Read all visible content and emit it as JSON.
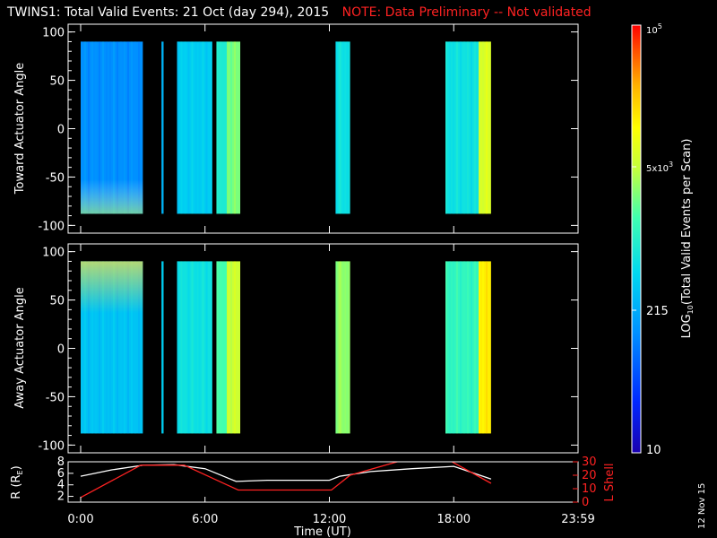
{
  "title": {
    "main": "TWINS1: Total Valid Events: 21 Oct (day 294), 2015",
    "note": "NOTE: Data Preliminary -- Not validated"
  },
  "colors": {
    "background": "#000000",
    "axes": "#ffffff",
    "note": "#ff2222",
    "r_line": "#ffffff",
    "lshell_line": "#ff2222"
  },
  "chart_data": [
    {
      "type": "heatmap",
      "name": "toward",
      "ylabel": "Toward Actuator Angle",
      "xlabel": "",
      "xlim": [
        0,
        24
      ],
      "ylim": [
        -108,
        108
      ],
      "yticks": [
        100,
        50,
        0,
        -50,
        -100
      ],
      "angle_range": [
        -88,
        90
      ],
      "blocks": [
        {
          "start": 0.0,
          "end": 3.0,
          "level": 0.28
        },
        {
          "start": 3.9,
          "end": 4.0,
          "level": 0.35
        },
        {
          "start": 4.65,
          "end": 6.35,
          "level": 0.4
        },
        {
          "start": 6.55,
          "end": 7.05,
          "level": 0.48
        },
        {
          "start": 7.05,
          "end": 7.7,
          "level": 0.6
        },
        {
          "start": 12.3,
          "end": 13.0,
          "level": 0.45
        },
        {
          "start": 17.6,
          "end": 19.2,
          "level": 0.45
        },
        {
          "start": 19.2,
          "end": 19.8,
          "level": 0.7
        }
      ]
    },
    {
      "type": "heatmap",
      "name": "away",
      "ylabel": "Away Actuator Angle",
      "xlabel": "",
      "xlim": [
        0,
        24
      ],
      "ylim": [
        -108,
        108
      ],
      "yticks": [
        100,
        50,
        0,
        -50,
        -100
      ],
      "angle_range": [
        -88,
        90
      ],
      "blocks": [
        {
          "start": 0.0,
          "end": 3.0,
          "level": 0.38
        },
        {
          "start": 3.9,
          "end": 4.0,
          "level": 0.4
        },
        {
          "start": 4.65,
          "end": 6.35,
          "level": 0.45
        },
        {
          "start": 6.55,
          "end": 7.05,
          "level": 0.55
        },
        {
          "start": 7.05,
          "end": 7.7,
          "level": 0.68
        },
        {
          "start": 12.3,
          "end": 13.0,
          "level": 0.62
        },
        {
          "start": 17.6,
          "end": 19.2,
          "level": 0.52
        },
        {
          "start": 19.2,
          "end": 19.8,
          "level": 0.78
        }
      ]
    },
    {
      "type": "line",
      "name": "orbit",
      "xlabel": "Time (UT)",
      "ylabel": "R (R",
      "ylabel_sub": "E",
      "ylabel_close": ")",
      "ylabel_right": "L Shell",
      "xlim": [
        0,
        24
      ],
      "xticks": [
        "0:00",
        "6:00",
        "12:00",
        "18:00",
        "23:59"
      ],
      "xtick_values": [
        0,
        6,
        12,
        18,
        24
      ],
      "ylim_left": [
        1,
        8
      ],
      "yticks_left": [
        2,
        4,
        6,
        8
      ],
      "ylim_right": [
        0,
        30
      ],
      "yticks_right": [
        0,
        10,
        20,
        30
      ],
      "series": [
        {
          "axis": "left",
          "color": "#ffffff",
          "x": [
            0,
            1.5,
            3,
            4.5,
            6,
            7.5,
            9,
            12,
            12.5,
            14,
            16,
            18,
            19.8
          ],
          "y": [
            5.5,
            6.6,
            7.4,
            7.5,
            6.8,
            4.6,
            4.8,
            4.8,
            5.5,
            6.3,
            6.8,
            7.2,
            5.0
          ]
        },
        {
          "axis": "right",
          "color": "#ff2222",
          "x": [
            0,
            2.9,
            5.0,
            7.6,
            12.1,
            13.0,
            15.5,
            17.8,
            19.8
          ],
          "y": [
            3.5,
            27.5,
            27.5,
            9.0,
            9.0,
            20.0,
            31.0,
            31.0,
            14.0
          ]
        }
      ]
    }
  ],
  "colorbar": {
    "label": "LOG",
    "label_sub": "10",
    "label_rest": "(Total Valid Events per Scan)",
    "tick_top": "10",
    "tick_top_sup": "5",
    "tick_mid": "5x10",
    "tick_mid_sup": "3",
    "tick_low": "215",
    "tick_bottom": "10"
  },
  "date_stamp": "12 Nov 15"
}
